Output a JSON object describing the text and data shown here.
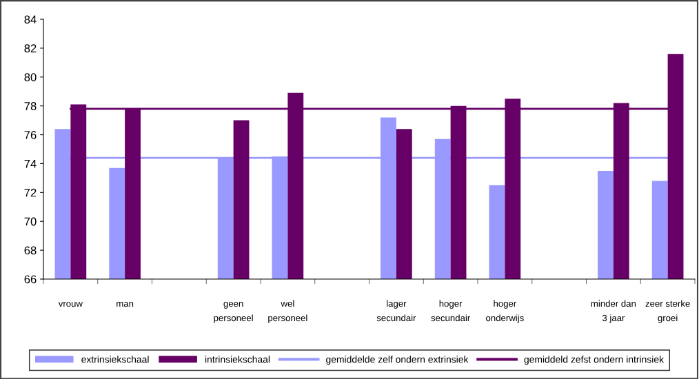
{
  "chart_data": {
    "type": "bar",
    "categories": [
      "vrouw",
      "man",
      null,
      "geen\npersoneel",
      "wel\npersoneel",
      null,
      "lager\nsecundair",
      "hoger\nsecundair",
      "hoger\nonderwijs",
      null,
      "minder dan\n3 jaar",
      "zeer sterke\ngroei"
    ],
    "series": [
      {
        "name": "extrinsiekschaal",
        "color": "#9999ff",
        "values": [
          76.4,
          73.7,
          null,
          74.4,
          74.5,
          null,
          77.2,
          75.7,
          72.5,
          null,
          73.5,
          72.8
        ]
      },
      {
        "name": "intrinsiekschaal",
        "color": "#660066",
        "values": [
          78.1,
          77.8,
          null,
          77.0,
          78.9,
          null,
          76.4,
          78.0,
          78.5,
          null,
          78.2,
          81.6
        ]
      }
    ],
    "ref_lines": [
      {
        "axis": "y",
        "value": 74.4,
        "label": "gemiddelde zelf ondern extrinsiek",
        "color": "#9999ff",
        "line_style": "solid"
      },
      {
        "axis": "y",
        "value": 77.8,
        "label": "gemiddeld zefst ondern intrinsiek",
        "color": "#660066",
        "line_style": "solid"
      }
    ],
    "ylim": [
      66,
      84
    ],
    "yticks": [
      66,
      68,
      70,
      72,
      74,
      76,
      78,
      80,
      82,
      84
    ],
    "grid": false,
    "legend": "bottom"
  }
}
